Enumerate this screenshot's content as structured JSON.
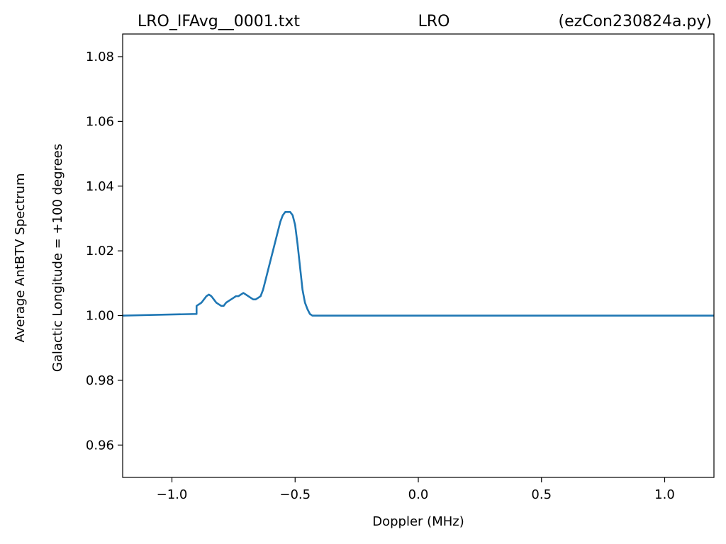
{
  "titles": {
    "left": "LRO_IFAvg__0001.txt",
    "center": "LRO",
    "right": "(ezCon230824a.py)"
  },
  "colors": {
    "line": "#1f77b4",
    "axes": "#000000",
    "background": "#ffffff"
  },
  "chart_data": {
    "type": "line",
    "xlabel": "Doppler (MHz)",
    "ylabel_line1": "Average AntBTV Spectrum",
    "ylabel_line2": "Galactic Longitude = +100 degrees",
    "xlim": [
      -1.2,
      1.2
    ],
    "ylim": [
      0.95,
      1.087
    ],
    "x_ticks": [
      -1.0,
      -0.5,
      0.0,
      0.5,
      1.0
    ],
    "x_tick_labels": [
      "−1.0",
      "−0.5",
      "0.0",
      "0.5",
      "1.0"
    ],
    "y_ticks": [
      0.96,
      0.98,
      1.0,
      1.02,
      1.04,
      1.06,
      1.08
    ],
    "y_tick_labels": [
      "0.96",
      "0.98",
      "1.00",
      "1.02",
      "1.04",
      "1.06",
      "1.08"
    ],
    "grid": false,
    "series": [
      {
        "x": [
          -1.2,
          -0.9,
          -0.9,
          -0.89,
          -0.88,
          -0.87,
          -0.86,
          -0.85,
          -0.84,
          -0.83,
          -0.82,
          -0.81,
          -0.8,
          -0.79,
          -0.78,
          -0.77,
          -0.76,
          -0.75,
          -0.74,
          -0.73,
          -0.72,
          -0.71,
          -0.7,
          -0.69,
          -0.68,
          -0.67,
          -0.66,
          -0.65,
          -0.64,
          -0.63,
          -0.62,
          -0.61,
          -0.6,
          -0.59,
          -0.58,
          -0.57,
          -0.56,
          -0.55,
          -0.54,
          -0.53,
          -0.52,
          -0.51,
          -0.5,
          -0.49,
          -0.48,
          -0.47,
          -0.46,
          -0.45,
          -0.44,
          -0.43,
          1.2
        ],
        "y": [
          1.0,
          1.0005,
          1.003,
          1.0035,
          1.004,
          1.005,
          1.006,
          1.0065,
          1.006,
          1.005,
          1.004,
          1.0035,
          1.003,
          1.003,
          1.004,
          1.0045,
          1.005,
          1.0055,
          1.006,
          1.006,
          1.0065,
          1.007,
          1.0065,
          1.006,
          1.0055,
          1.005,
          1.005,
          1.0055,
          1.006,
          1.008,
          1.011,
          1.014,
          1.017,
          1.02,
          1.023,
          1.026,
          1.029,
          1.031,
          1.032,
          1.032,
          1.032,
          1.031,
          1.028,
          1.022,
          1.015,
          1.008,
          1.004,
          1.002,
          1.0005,
          1.0,
          1.0
        ]
      }
    ]
  }
}
